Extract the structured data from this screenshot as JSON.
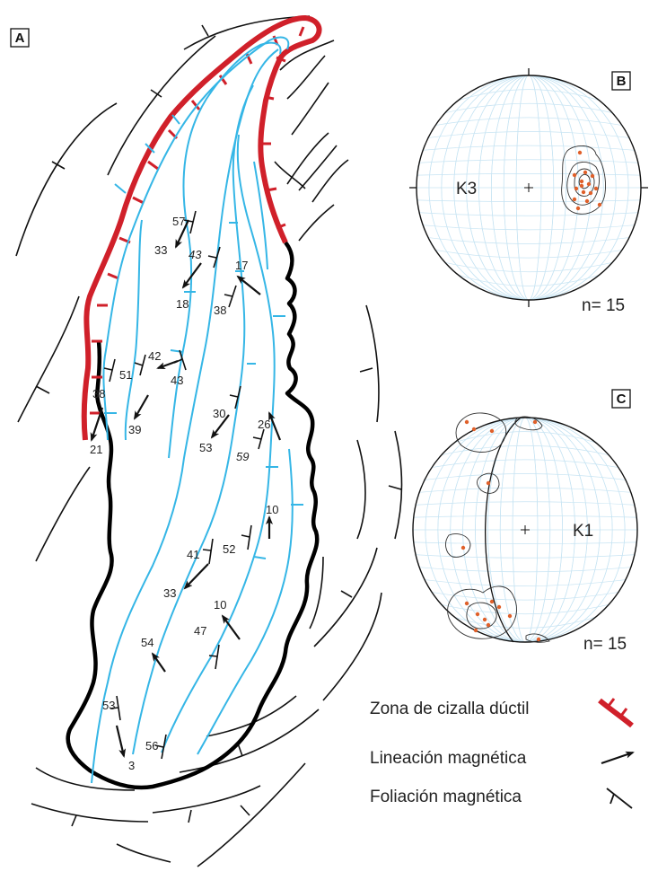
{
  "panels": {
    "a": "A",
    "b": "B",
    "c": "C"
  },
  "map_labels": [
    {
      "text": "57",
      "kind": "dip"
    },
    {
      "text": "33",
      "kind": "plunge"
    },
    {
      "text": "43",
      "kind": "dip"
    },
    {
      "text": "18",
      "kind": "plunge"
    },
    {
      "text": "17",
      "kind": "plunge"
    },
    {
      "text": "38",
      "kind": "dip"
    },
    {
      "text": "42",
      "kind": "plunge"
    },
    {
      "text": "43",
      "kind": "dip"
    },
    {
      "text": "51",
      "kind": "dip"
    },
    {
      "text": "38",
      "kind": "dip"
    },
    {
      "text": "39",
      "kind": "plunge"
    },
    {
      "text": "21",
      "kind": "plunge"
    },
    {
      "text": "30",
      "kind": "dip"
    },
    {
      "text": "53",
      "kind": "plunge"
    },
    {
      "text": "26",
      "kind": "plunge"
    },
    {
      "text": "59",
      "kind": "dip"
    },
    {
      "text": "10",
      "kind": "plunge"
    },
    {
      "text": "52",
      "kind": "dip"
    },
    {
      "text": "41",
      "kind": "dip"
    },
    {
      "text": "33",
      "kind": "plunge"
    },
    {
      "text": "10",
      "kind": "plunge"
    },
    {
      "text": "47",
      "kind": "dip"
    },
    {
      "text": "53",
      "kind": "dip"
    },
    {
      "text": "54",
      "kind": "plunge"
    },
    {
      "text": "56",
      "kind": "dip"
    },
    {
      "text": "3",
      "kind": "plunge"
    }
  ],
  "stereonets": {
    "b": {
      "axis_label": "K3",
      "n_label": "n= 15"
    },
    "c": {
      "axis_label": "K1",
      "n_label": "n= 15"
    }
  },
  "legend": {
    "shear_zone": "Zona de cizalla dúctil",
    "lineation": "Lineación magnética",
    "foliation": "Foliación magnética"
  },
  "colors": {
    "shear_zone": "#d0202a",
    "foliation_trace": "#35b6e6",
    "boundary": "#000000",
    "points": "#e0602a"
  }
}
